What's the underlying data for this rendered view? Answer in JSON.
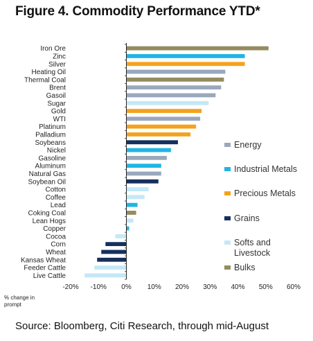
{
  "title": "Figure 4. Commodity Performance YTD*",
  "source": "Source: Bloomberg, Citi Research, through mid-August",
  "chart_data": {
    "type": "bar",
    "orientation": "horizontal",
    "xlabel_lines": [
      "% change in",
      "prompt"
    ],
    "xlim": [
      -20,
      60
    ],
    "xticks": [
      -20,
      -10,
      0,
      10,
      20,
      30,
      40,
      50,
      60
    ],
    "tick_format": "percent",
    "legend_position": "right",
    "groups": [
      {
        "name": "Energy",
        "color": "#9aa8bc"
      },
      {
        "name": "Industrial Metals",
        "color": "#22b4e4"
      },
      {
        "name": "Precious Metals",
        "color": "#f4a21d"
      },
      {
        "name": "Grains",
        "color": "#16305e"
      },
      {
        "name": "Softs and Livestock",
        "color": "#c4e8f6"
      },
      {
        "name": "Bulks",
        "color": "#958b5e"
      }
    ],
    "bars": [
      {
        "category": "Iron Ore",
        "value": 51,
        "group": "Bulks"
      },
      {
        "category": "Zinc",
        "value": 42.5,
        "group": "Industrial Metals"
      },
      {
        "category": "Silver",
        "value": 42.5,
        "group": "Precious Metals"
      },
      {
        "category": "Heating Oil",
        "value": 35.5,
        "group": "Energy"
      },
      {
        "category": "Thermal Coal",
        "value": 35,
        "group": "Bulks"
      },
      {
        "category": "Brent",
        "value": 34,
        "group": "Energy"
      },
      {
        "category": "Gasoil",
        "value": 32,
        "group": "Energy"
      },
      {
        "category": "Sugar",
        "value": 29.5,
        "group": "Softs and Livestock"
      },
      {
        "category": "Gold",
        "value": 27,
        "group": "Precious Metals"
      },
      {
        "category": "WTI",
        "value": 26.5,
        "group": "Energy"
      },
      {
        "category": "Platinum",
        "value": 25,
        "group": "Precious Metals"
      },
      {
        "category": "Palladium",
        "value": 23,
        "group": "Precious Metals"
      },
      {
        "category": "Soybeans",
        "value": 18.5,
        "group": "Grains"
      },
      {
        "category": "Nickel",
        "value": 16,
        "group": "Industrial Metals"
      },
      {
        "category": "Gasoline",
        "value": 14.5,
        "group": "Energy"
      },
      {
        "category": "Aluminum",
        "value": 12.5,
        "group": "Industrial Metals"
      },
      {
        "category": "Natural Gas",
        "value": 12.5,
        "group": "Energy"
      },
      {
        "category": "Soybean Oil",
        "value": 11.5,
        "group": "Grains"
      },
      {
        "category": "Cotton",
        "value": 8,
        "group": "Softs and Livestock"
      },
      {
        "category": "Coffee",
        "value": 6.5,
        "group": "Softs and Livestock"
      },
      {
        "category": "Lead",
        "value": 4,
        "group": "Industrial Metals"
      },
      {
        "category": "Coking Coal",
        "value": 3.5,
        "group": "Bulks"
      },
      {
        "category": "Lean Hogs",
        "value": 2.5,
        "group": "Softs and Livestock"
      },
      {
        "category": "Copper",
        "value": 1,
        "group": "Industrial Metals"
      },
      {
        "category": "Cocoa",
        "value": -4,
        "group": "Softs and Livestock"
      },
      {
        "category": "Corn",
        "value": -7.5,
        "group": "Grains"
      },
      {
        "category": "Wheat",
        "value": -9,
        "group": "Grains"
      },
      {
        "category": "Kansas Wheat",
        "value": -10.5,
        "group": "Grains"
      },
      {
        "category": "Feeder Cattle",
        "value": -11.5,
        "group": "Softs and Livestock"
      },
      {
        "category": "Live Cattle",
        "value": -15,
        "group": "Softs and Livestock"
      }
    ]
  }
}
